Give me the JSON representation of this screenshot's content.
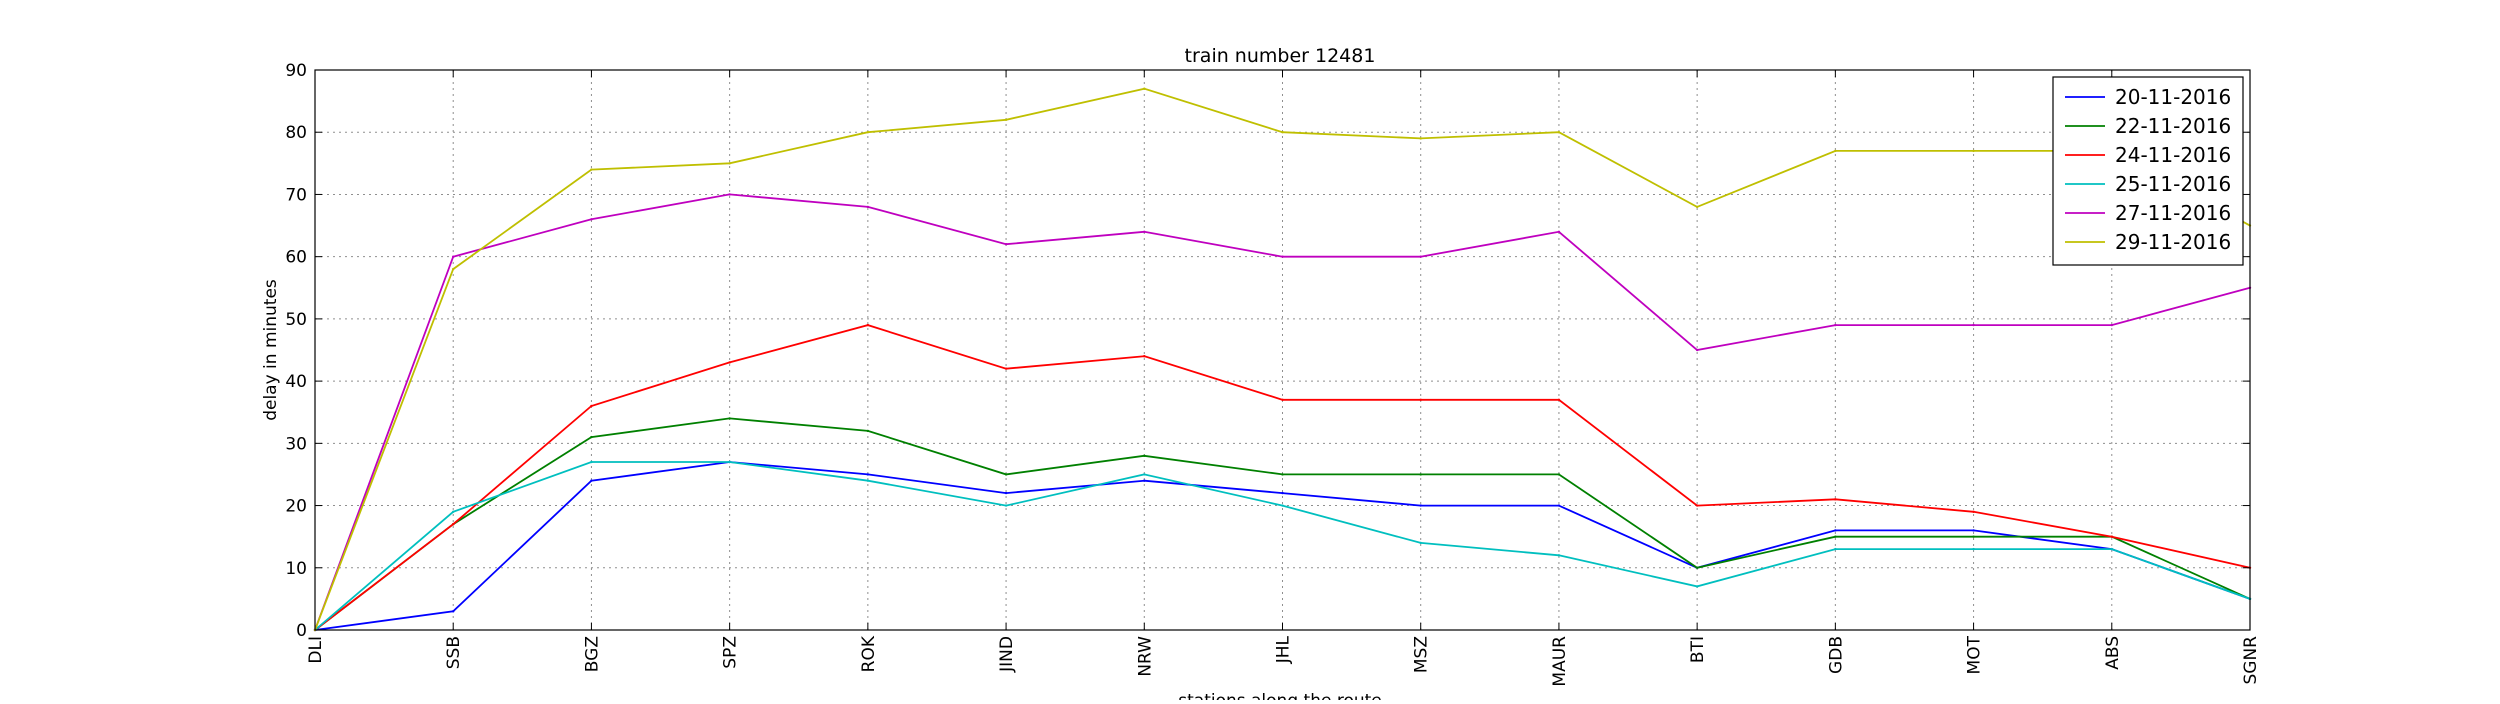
{
  "chart_data": {
    "type": "line",
    "title": "train number 12481",
    "xlabel": "stations along the route",
    "ylabel": "delay in minutes",
    "categories": [
      "DLI",
      "SSB",
      "BGZ",
      "SPZ",
      "ROK",
      "JIND",
      "NRW",
      "JHL",
      "MSZ",
      "MAUR",
      "BTI",
      "GDB",
      "MOT",
      "ABS",
      "SGNR"
    ],
    "ylim": [
      0,
      90
    ],
    "yticks": [
      0,
      10,
      20,
      30,
      40,
      50,
      60,
      70,
      80,
      90
    ],
    "grid": true,
    "legend_position": "top-right",
    "series": [
      {
        "name": "20-11-2016",
        "color": "#0000ff",
        "values": [
          0,
          3,
          24,
          27,
          25,
          22,
          24,
          22,
          20,
          20,
          10,
          16,
          16,
          13,
          5
        ]
      },
      {
        "name": "22-11-2016",
        "color": "#008000",
        "values": [
          0,
          17,
          31,
          34,
          32,
          25,
          28,
          25,
          25,
          25,
          10,
          15,
          15,
          15,
          5
        ]
      },
      {
        "name": "24-11-2016",
        "color": "#ff0000",
        "values": [
          0,
          17,
          36,
          43,
          49,
          42,
          44,
          37,
          37,
          37,
          20,
          21,
          19,
          15,
          10
        ]
      },
      {
        "name": "25-11-2016",
        "color": "#00bfbf",
        "values": [
          0,
          19,
          27,
          27,
          24,
          20,
          25,
          20,
          14,
          12,
          7,
          13,
          13,
          13,
          5
        ]
      },
      {
        "name": "27-11-2016",
        "color": "#bf00bf",
        "values": [
          0,
          60,
          66,
          70,
          68,
          62,
          64,
          60,
          60,
          64,
          45,
          49,
          49,
          49,
          55
        ]
      },
      {
        "name": "29-11-2016",
        "color": "#bfbf00",
        "values": [
          0,
          58,
          74,
          75,
          80,
          82,
          87,
          80,
          79,
          80,
          68,
          77,
          77,
          77,
          65
        ]
      }
    ]
  }
}
